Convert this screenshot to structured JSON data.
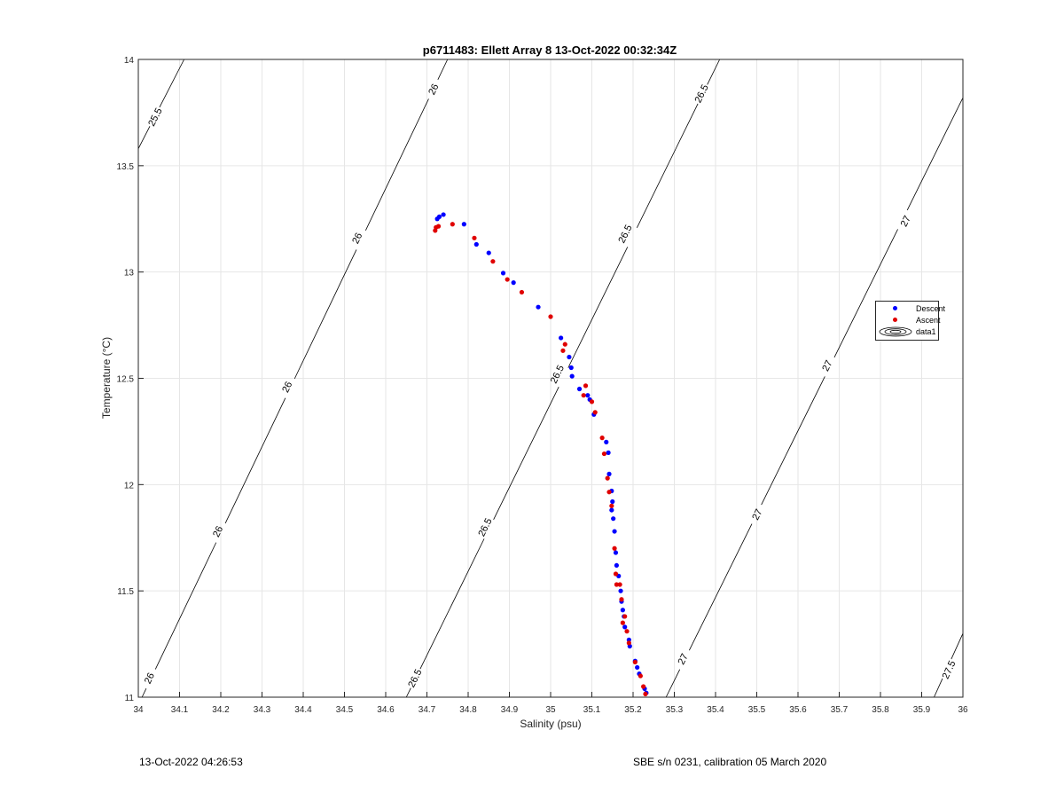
{
  "chart_data": {
    "type": "scatter",
    "title": "p6711483: Ellett Array 8 13-Oct-2022 00:32:34Z",
    "xlabel": "Salinity (psu)",
    "ylabel": "Temperature (°C)",
    "xlim": [
      34,
      36
    ],
    "ylim": [
      11,
      14
    ],
    "grid": true,
    "legend_placement": "right",
    "xticks": [
      "34",
      "34.1",
      "34.2",
      "34.3",
      "34.4",
      "34.5",
      "34.6",
      "34.7",
      "34.8",
      "34.9",
      "35",
      "35.1",
      "35.2",
      "35.3",
      "35.4",
      "35.5",
      "35.6",
      "35.7",
      "35.8",
      "35.9",
      "36"
    ],
    "yticks": [
      "11",
      "11.5",
      "12",
      "12.5",
      "13",
      "13.5",
      "14"
    ],
    "series": [
      {
        "name": "Descent",
        "color": "#0000ff",
        "points": [
          [
            34.73,
            13.26
          ],
          [
            34.74,
            13.27
          ],
          [
            34.725,
            13.25
          ],
          [
            34.79,
            13.225
          ],
          [
            34.82,
            13.13
          ],
          [
            34.85,
            13.09
          ],
          [
            34.885,
            12.995
          ],
          [
            34.91,
            12.95
          ],
          [
            34.97,
            12.835
          ],
          [
            35.025,
            12.69
          ],
          [
            35.045,
            12.6
          ],
          [
            35.05,
            12.55
          ],
          [
            35.052,
            12.51
          ],
          [
            35.07,
            12.45
          ],
          [
            35.09,
            12.42
          ],
          [
            35.095,
            12.4
          ],
          [
            35.105,
            12.33
          ],
          [
            35.135,
            12.2
          ],
          [
            35.14,
            12.15
          ],
          [
            35.142,
            12.05
          ],
          [
            35.148,
            11.97
          ],
          [
            35.15,
            11.92
          ],
          [
            35.148,
            11.88
          ],
          [
            35.152,
            11.84
          ],
          [
            35.155,
            11.78
          ],
          [
            35.158,
            11.68
          ],
          [
            35.16,
            11.62
          ],
          [
            35.165,
            11.57
          ],
          [
            35.17,
            11.5
          ],
          [
            35.172,
            11.45
          ],
          [
            35.175,
            11.41
          ],
          [
            35.178,
            11.38
          ],
          [
            35.18,
            11.33
          ],
          [
            35.19,
            11.27
          ],
          [
            35.192,
            11.24
          ],
          [
            35.205,
            11.17
          ],
          [
            35.21,
            11.14
          ],
          [
            35.215,
            11.11
          ],
          [
            35.228,
            11.04
          ],
          [
            35.232,
            11.02
          ]
        ]
      },
      {
        "name": "Ascent",
        "color": "#e00000",
        "points": [
          [
            34.72,
            13.195
          ],
          [
            34.722,
            13.21
          ],
          [
            34.728,
            13.215
          ],
          [
            34.762,
            13.225
          ],
          [
            34.815,
            13.16
          ],
          [
            34.86,
            13.05
          ],
          [
            34.895,
            12.965
          ],
          [
            34.93,
            12.905
          ],
          [
            35.0,
            12.79
          ],
          [
            35.03,
            12.63
          ],
          [
            35.035,
            12.66
          ],
          [
            35.08,
            12.42
          ],
          [
            35.085,
            12.465
          ],
          [
            35.1,
            12.39
          ],
          [
            35.108,
            12.34
          ],
          [
            35.125,
            12.22
          ],
          [
            35.13,
            12.145
          ],
          [
            35.138,
            12.03
          ],
          [
            35.142,
            11.965
          ],
          [
            35.148,
            11.9
          ],
          [
            35.155,
            11.7
          ],
          [
            35.158,
            11.58
          ],
          [
            35.16,
            11.53
          ],
          [
            35.168,
            11.53
          ],
          [
            35.172,
            11.46
          ],
          [
            35.175,
            11.35
          ],
          [
            35.18,
            11.38
          ],
          [
            35.185,
            11.31
          ],
          [
            35.19,
            11.255
          ],
          [
            35.205,
            11.165
          ],
          [
            35.218,
            11.1
          ],
          [
            35.225,
            11.05
          ],
          [
            35.23,
            11.015
          ]
        ]
      },
      {
        "name": "data1",
        "color": "#000000"
      }
    ],
    "contours": [
      {
        "level": "25.5",
        "points": [
          [
            34,
            13.58
          ],
          [
            34.111,
            14
          ]
        ],
        "labels": [
          [
            34.04,
            13.73
          ]
        ]
      },
      {
        "level": "26",
        "points": [
          [
            34.009,
            11
          ],
          [
            34.75,
            14
          ]
        ],
        "labels": [
          [
            34.026,
            11.09
          ],
          [
            34.192,
            11.78
          ],
          [
            34.36,
            12.46
          ],
          [
            34.53,
            13.16
          ],
          [
            34.715,
            13.86
          ]
        ]
      },
      {
        "level": "26.5",
        "points": [
          [
            34.65,
            11
          ],
          [
            35.41,
            14
          ]
        ],
        "labels": [
          [
            34.67,
            11.09
          ],
          [
            34.84,
            11.8
          ],
          [
            35.015,
            12.52
          ],
          [
            35.18,
            13.18
          ],
          [
            35.365,
            13.84
          ]
        ]
      },
      {
        "level": "27",
        "points": [
          [
            35.28,
            11
          ],
          [
            36,
            13.82
          ]
        ],
        "labels": [
          [
            35.32,
            11.18
          ],
          [
            35.5,
            11.86
          ],
          [
            35.67,
            12.56
          ],
          [
            35.86,
            13.24
          ]
        ]
      },
      {
        "level": "27.5",
        "points": [
          [
            35.93,
            11
          ],
          [
            36,
            11.3
          ]
        ],
        "labels": [
          [
            35.965,
            11.13
          ]
        ]
      }
    ]
  },
  "footer": {
    "left": "13-Oct-2022 04:26:53",
    "right": "SBE s/n 0231, calibration 05 March 2020"
  }
}
